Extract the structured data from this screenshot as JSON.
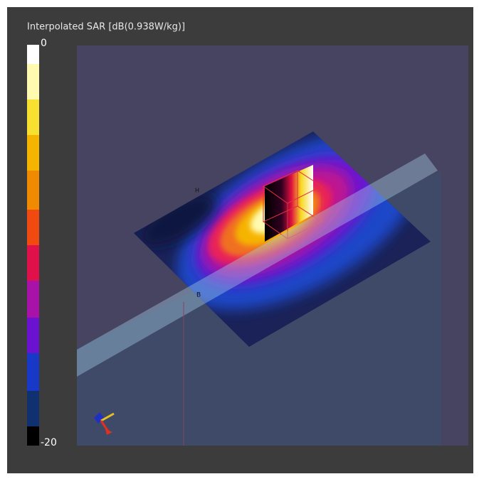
{
  "title": "Interpolated SAR [dB(0.938W/kg)]",
  "colorbar": {
    "top_label": "0",
    "bottom_label": "-20"
  },
  "markers": [
    "H",
    "B"
  ]
}
